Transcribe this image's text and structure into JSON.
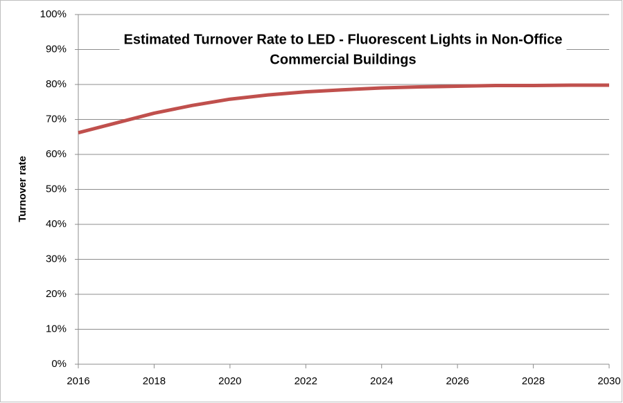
{
  "chart_data": {
    "type": "line",
    "title": [
      "Estimated Turnover Rate to LED - Fluorescent Lights in Non-Office",
      "Commercial Buildings"
    ],
    "y_label": "Turnover rate",
    "x": [
      2016,
      2017,
      2018,
      2019,
      2020,
      2021,
      2022,
      2023,
      2024,
      2025,
      2026,
      2027,
      2028,
      2029,
      2030
    ],
    "series": [
      {
        "name": "Turnover rate",
        "color": "#c0504d",
        "values": [
          66.2,
          69.0,
          71.8,
          74.0,
          75.8,
          77.0,
          77.9,
          78.5,
          79.0,
          79.3,
          79.5,
          79.7,
          79.7,
          79.8,
          79.8
        ]
      }
    ],
    "xlim": [
      2016,
      2030
    ],
    "xticks": [
      2016,
      2018,
      2020,
      2022,
      2024,
      2026,
      2028,
      2030
    ],
    "ylim": [
      0,
      100
    ],
    "yticks": [
      {
        "value": 0,
        "label": "0%"
      },
      {
        "value": 10,
        "label": "10%"
      },
      {
        "value": 20,
        "label": "20%"
      },
      {
        "value": 30,
        "label": "30%"
      },
      {
        "value": 40,
        "label": "40%"
      },
      {
        "value": 50,
        "label": "50%"
      },
      {
        "value": 60,
        "label": "60%"
      },
      {
        "value": 70,
        "label": "70%"
      },
      {
        "value": 80,
        "label": "80%"
      },
      {
        "value": 90,
        "label": "90%"
      },
      {
        "value": 100,
        "label": "100%"
      }
    ],
    "grid": true
  }
}
